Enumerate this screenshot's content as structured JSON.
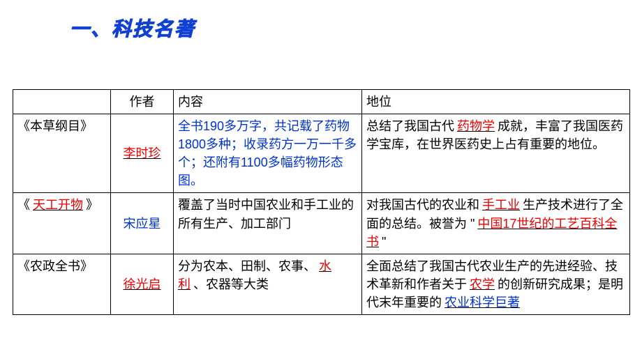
{
  "heading": "一、科技名著",
  "table": {
    "headers": {
      "author": "作者",
      "content": "内容",
      "status": "地位"
    },
    "rows": [
      {
        "book": "《本草纲目》",
        "author": "李时珍",
        "author_fill": true,
        "content_blue": "全书190多万字，共记载了药物1800多种；收录药方一万一千多个；还附有1100多幅药物形态图。",
        "status": {
          "pre1": "总结了我国古代",
          "fill1": "药物学",
          "post1": "成就，丰富了我国医药学宝库，在世界医药史上占有重要的地位。"
        }
      },
      {
        "book_pre": "《",
        "book_fill": "天工开物",
        "book_post": "》",
        "author": "宋应星",
        "author_fill": false,
        "content_plain": "覆盖了当时中国农业和手工业的所有生产、加工部门",
        "status": {
          "pre1": "对我国古代的农业和",
          "fill1": "手工业",
          "mid1": "生产技术进行了全面的总结。被誉为 \"",
          "fill2": "中国17世纪的工艺百科全书",
          "post1": "\""
        }
      },
      {
        "book": "《农政全书》",
        "author": "徐光启",
        "author_fill": true,
        "content": {
          "pre": "分为农本、田制、农事、",
          "fill": "水利",
          "post": "、农器等大类"
        },
        "status": {
          "pre1": "全面总结了我国古代农业生产的先进经验、技术革新和作者关于",
          "fill1": "农学",
          "mid1": "的创新研究成果；是明代末年重要的",
          "fill_blue": "农业科学巨著"
        }
      }
    ]
  },
  "colors": {
    "heading": "#2050ff",
    "blue_text": "#0033cc",
    "red_text": "#ee0000",
    "border": "#000000",
    "background": "#ffffff"
  },
  "font_sizes": {
    "heading": 28,
    "cell": 18
  }
}
